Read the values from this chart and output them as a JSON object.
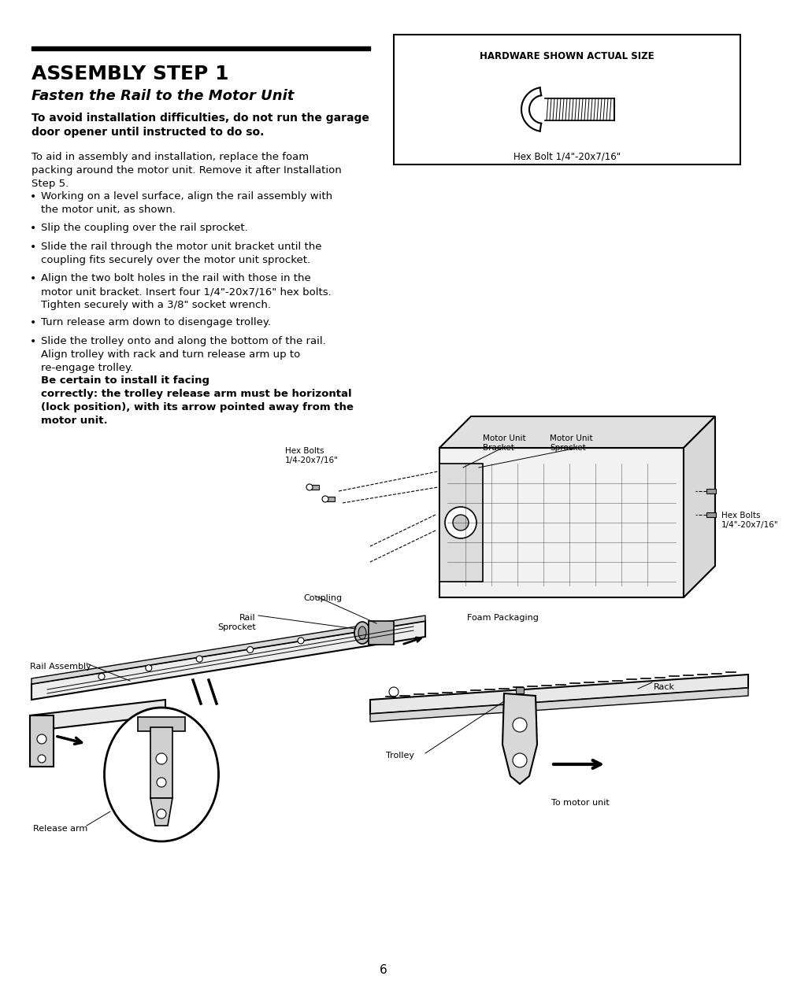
{
  "bg_color": "#ffffff",
  "title1": "ASSEMBLY STEP 1",
  "title2": "Fasten the Rail to the Motor Unit",
  "bold_warning": "To avoid installation difficulties, do not run the garage\ndoor opener until instructed to do so.",
  "para1": "To aid in assembly and installation, replace the foam\npacking around the motor unit. Remove it after Installation\nStep 5.",
  "bullets": [
    "Working on a level surface, align the rail assembly with\nthe motor unit, as shown.",
    "Slip the coupling over the rail sprocket.",
    "Slide the rail through the motor unit bracket until the\ncoupling fits securely over the motor unit sprocket.",
    "Align the two bolt holes in the rail with those in the\nmotor unit bracket. Insert four 1/4\"-20x7/16\" hex bolts.\nTighten securely with a 3/8\" socket wrench.",
    "Turn release arm down to disengage trolley.",
    "Slide the trolley onto and along the bottom of the rail.\nAlign trolley with rack and turn release arm up to\nre-engage trolley."
  ],
  "bold_end": "Be certain to install it facing\ncorrectly: the trolley release arm must be horizontal\n(lock position), with its arrow pointed away from the\nmotor unit.",
  "hardware_box_title": "HARDWARE SHOWN ACTUAL SIZE",
  "hardware_label": "Hex Bolt 1/4\"-20x7/16\"",
  "page_number": "6",
  "diagram_labels": {
    "hex_bolts_top": "Hex Bolts\n1/4-20x7/16\"",
    "motor_unit_bracket": "Motor Unit\nBracket",
    "motor_unit_sprocket": "Motor Unit\nSprocket",
    "coupling": "Coupling",
    "rail_sprocket": "Rail\nSprocket",
    "rail_assembly": "Rail Assembly",
    "foam_packaging": "Foam Packaging",
    "hex_bolts_right": "Hex Bolts\n1/4\"-20x7/16\"",
    "release_arm": "Release arm",
    "trolley": "Trolley",
    "rack": "Rack",
    "to_motor_unit": "To motor unit"
  }
}
